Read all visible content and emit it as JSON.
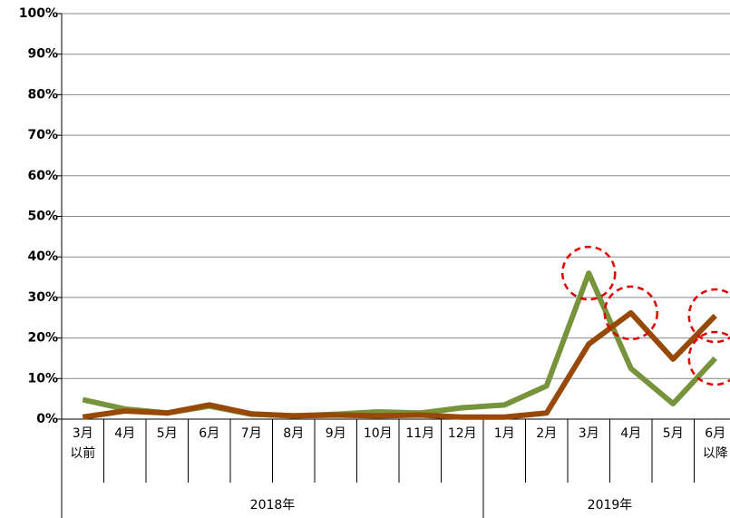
{
  "chart_data": {
    "type": "line",
    "categories": [
      [
        "3月",
        "以前"
      ],
      [
        "4月"
      ],
      [
        "5月"
      ],
      [
        "6月"
      ],
      [
        "7月"
      ],
      [
        "8月"
      ],
      [
        "9月"
      ],
      [
        "10月"
      ],
      [
        "11月"
      ],
      [
        "12月"
      ],
      [
        "1月"
      ],
      [
        "2月"
      ],
      [
        "3月"
      ],
      [
        "4月"
      ],
      [
        "5月"
      ],
      [
        "6月",
        "以降"
      ]
    ],
    "groups": [
      {
        "label": "2018年",
        "count": 10
      },
      {
        "label": "2019年",
        "count": 6
      }
    ],
    "series": [
      {
        "color": "#77933c",
        "values": [
          4.8,
          2.5,
          1.5,
          3.2,
          1.2,
          0.8,
          1.2,
          1.8,
          1.5,
          2.8,
          3.5,
          8.2,
          36,
          12.5,
          3.8,
          15
        ]
      },
      {
        "color": "#984807",
        "values": [
          0.5,
          2,
          1.5,
          3.5,
          1.3,
          0.8,
          1,
          0.8,
          1,
          0.5,
          0.5,
          1.5,
          18.5,
          26.2,
          14.8,
          25.5
        ]
      }
    ],
    "highlights": [
      {
        "series": 0,
        "index": 12
      },
      {
        "series": 1,
        "index": 13
      },
      {
        "series": 1,
        "index": 15
      },
      {
        "series": 0,
        "index": 15
      }
    ],
    "highlight_color": "#e00000",
    "ylim": [
      0,
      100
    ],
    "yticks": [
      {
        "value": 0,
        "label": "0%"
      },
      {
        "value": 10,
        "label": "10%"
      },
      {
        "value": 20,
        "label": "20%"
      },
      {
        "value": 30,
        "label": "30%"
      },
      {
        "value": 40,
        "label": "40%"
      },
      {
        "value": 50,
        "label": "50%"
      },
      {
        "value": 60,
        "label": "60%"
      },
      {
        "value": 70,
        "label": "70%"
      },
      {
        "value": 80,
        "label": "80%"
      },
      {
        "value": 90,
        "label": "90%"
      },
      {
        "value": 100,
        "label": "100%"
      }
    ],
    "grid": true
  }
}
